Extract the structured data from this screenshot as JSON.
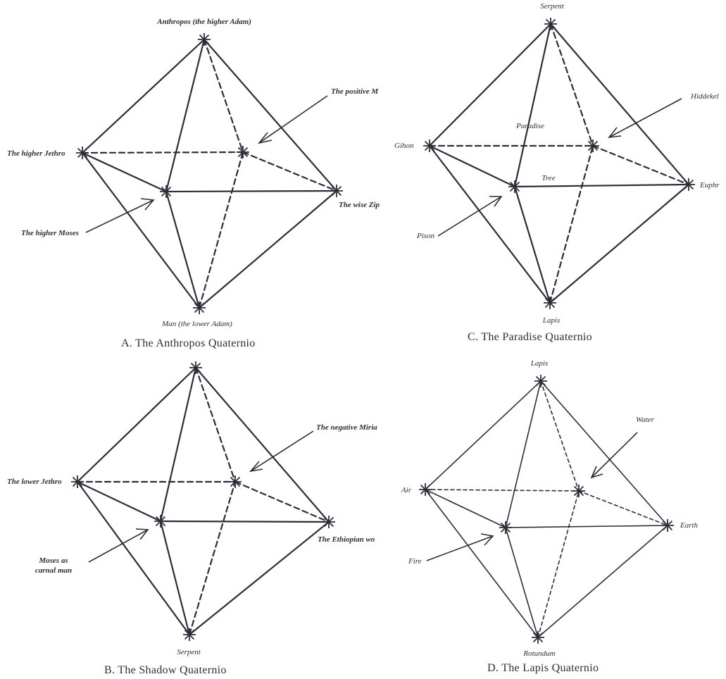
{
  "panels": [
    {
      "id": "A",
      "caption": "A. The Anthropos Quaternio",
      "labels": {
        "top": "Anthropos (the higher Adam)",
        "left": "The higher Jethro",
        "back": "The positive M",
        "right": "The wise Zip",
        "front": "The higher Moses",
        "bottom": "Man (the lower Adam)"
      }
    },
    {
      "id": "B",
      "caption": "B. The Shadow Quaternio",
      "labels": {
        "left": "The lower Jethro",
        "back": "The negative Miria",
        "right": "The Ethiopian wo",
        "front_line1": "Moses as",
        "front_line2": "carnal man",
        "bottom": "Serpent"
      }
    },
    {
      "id": "C",
      "caption": "C. The Paradise Quaternio",
      "labels": {
        "top": "Serpent",
        "left": "Gihon",
        "back": "Hiddekel",
        "right": "Euphr",
        "front": "Pison",
        "bottom": "Lapis",
        "inner_top": "Paradise",
        "inner_mid": "Tree"
      }
    },
    {
      "id": "D",
      "caption": "D. The Lapis Quaternio",
      "labels": {
        "top": "Lapis",
        "left": "Air",
        "back": "Water",
        "right": "Earth",
        "front": "Fire",
        "bottom": "Rotundum"
      }
    }
  ]
}
